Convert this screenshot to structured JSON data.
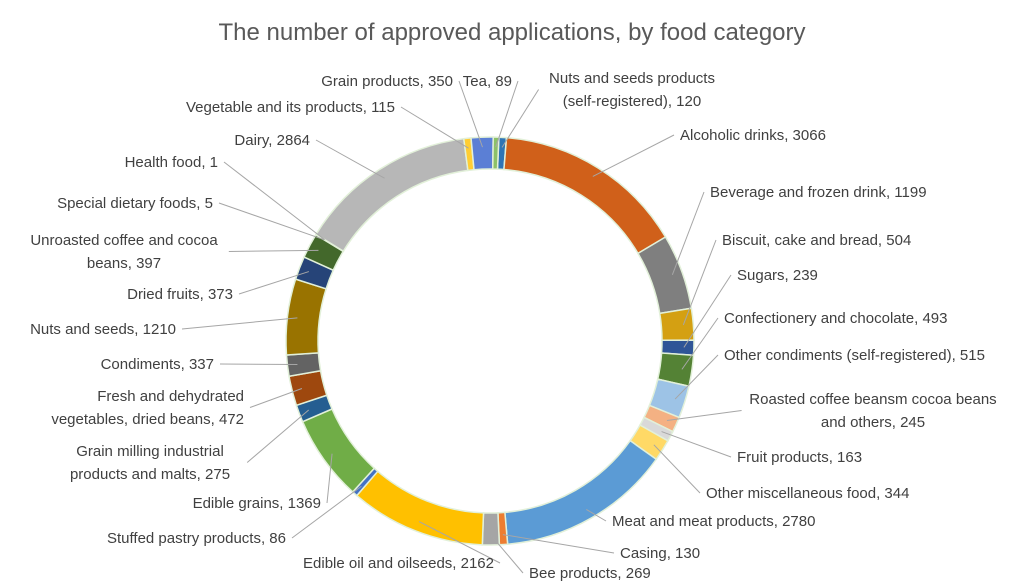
{
  "chart_data": {
    "type": "pie",
    "style": "doughnut",
    "title": "The number of approved applications, by food category",
    "legend": "none",
    "slices": [
      {
        "label": "Nuts and seeds products (self-registered), 120",
        "name": "Nuts and seeds products (self-registered)",
        "value": 120,
        "color": "#2e75b6"
      },
      {
        "label": "Alcoholic drinks, 3066",
        "name": "Alcoholic drinks",
        "value": 3066,
        "color": "#d0601a"
      },
      {
        "label": "Beverage and frozen drink, 1199",
        "name": "Beverage and frozen drink",
        "value": 1199,
        "color": "#7f7f7f"
      },
      {
        "label": "Biscuit, cake and bread, 504",
        "name": "Biscuit, cake and bread",
        "value": 504,
        "color": "#d4a012"
      },
      {
        "label": "Sugars, 239",
        "name": "Sugars",
        "value": 239,
        "color": "#2f5597"
      },
      {
        "label": "Confectionery and chocolate, 493",
        "name": "Confectionery and chocolate",
        "value": 493,
        "color": "#548235"
      },
      {
        "label": "Other condiments (self-registered), 515",
        "name": "Other condiments (self-registered)",
        "value": 515,
        "color": "#9dc3e6"
      },
      {
        "label": "Roasted coffee beansm cocoa beans and others, 245",
        "name": "Roasted coffee beansm cocoa beans and others",
        "value": 245,
        "color": "#f4b183"
      },
      {
        "label": "Fruit products, 163",
        "name": "Fruit products",
        "value": 163,
        "color": "#d9d9d9"
      },
      {
        "label": "Other miscellaneous food, 344",
        "name": "Other miscellaneous food",
        "value": 344,
        "color": "#ffd966"
      },
      {
        "label": "Meat and meat products, 2780",
        "name": "Meat and meat products",
        "value": 2780,
        "color": "#5b9bd5"
      },
      {
        "label": "Casing, 130",
        "name": "Casing",
        "value": 130,
        "color": "#ed7d31"
      },
      {
        "label": "Bee products, 269",
        "name": "Bee products",
        "value": 269,
        "color": "#a5a5a5"
      },
      {
        "label": "Edible oil and oilseeds, 2162",
        "name": "Edible oil and oilseeds",
        "value": 2162,
        "color": "#ffc000"
      },
      {
        "label": "Stuffed pastry products, 86",
        "name": "Stuffed pastry products",
        "value": 86,
        "color": "#4472c4"
      },
      {
        "label": "Edible grains, 1369",
        "name": "Edible grains",
        "value": 1369,
        "color": "#70ad47"
      },
      {
        "label": "Grain milling industrial products and malts, 275",
        "name": "Grain milling industrial products and malts",
        "value": 275,
        "color": "#255e91"
      },
      {
        "label": "Fresh and dehydrated vegetables, dried beans, 472",
        "name": "Fresh and dehydrated vegetables, dried beans",
        "value": 472,
        "color": "#9e480e"
      },
      {
        "label": "Condiments, 337",
        "name": "Condiments",
        "value": 337,
        "color": "#636363"
      },
      {
        "label": "Nuts and seeds, 1210",
        "name": "Nuts and seeds",
        "value": 1210,
        "color": "#997300"
      },
      {
        "label": "Dried fruits, 373",
        "name": "Dried fruits",
        "value": 373,
        "color": "#264478"
      },
      {
        "label": "Unroasted coffee and cocoa beans, 397",
        "name": "Unroasted coffee and cocoa beans",
        "value": 397,
        "color": "#43682b"
      },
      {
        "label": "Special dietary foods, 5",
        "name": "Special dietary foods",
        "value": 5,
        "color": "#698ed0"
      },
      {
        "label": "Health food, 1",
        "name": "Health food",
        "value": 1,
        "color": "#f1975a"
      },
      {
        "label": "Dairy, 2864",
        "name": "Dairy",
        "value": 2864,
        "color": "#b7b7b7"
      },
      {
        "label": "Vegetable and its products, 115",
        "name": "Vegetable and its products",
        "value": 115,
        "color": "#ffcd33"
      },
      {
        "label": "Grain products, 350",
        "name": "Grain products",
        "value": 350,
        "color": "#5b7fd5"
      },
      {
        "label": "Tea, 89",
        "name": "Tea",
        "value": 89,
        "color": "#8cc168"
      }
    ]
  }
}
